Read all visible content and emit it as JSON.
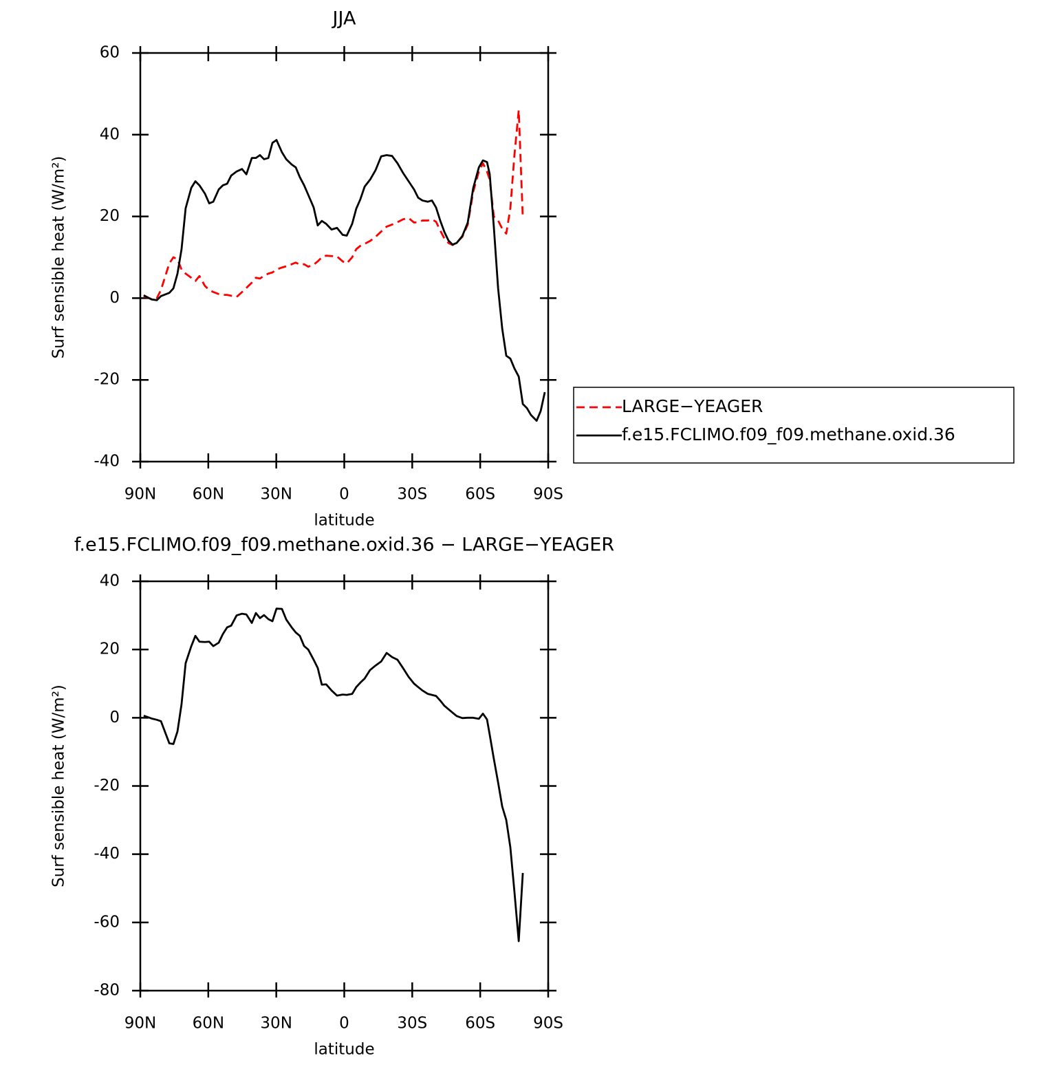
{
  "chart_data": [
    {
      "type": "line",
      "title": "JJA",
      "xlabel": "latitude",
      "ylabel": "Surf sensible heat (W/m²)",
      "xlim": [
        90,
        -90
      ],
      "xticks": [
        {
          "value": 90,
          "label": "90N"
        },
        {
          "value": 60,
          "label": "60N"
        },
        {
          "value": 30,
          "label": "30N"
        },
        0,
        {
          "value": -30,
          "label": "30S"
        },
        {
          "value": -60,
          "label": "60S"
        },
        {
          "value": -90,
          "label": "90S"
        }
      ],
      "ylim": [
        -40,
        60
      ],
      "yticks": [
        60,
        40,
        20,
        0,
        -20,
        -40
      ],
      "legend": "right",
      "x": [
        88.5,
        85.1,
        82.7,
        80.9,
        77.2,
        75.4,
        73.6,
        71.8,
        70,
        67.5,
        65.7,
        63.9,
        61.5,
        59.6,
        57.8,
        55.4,
        53.6,
        51.7,
        49.9,
        47.5,
        45.1,
        43.2,
        40.8,
        39,
        37.2,
        35.4,
        33.5,
        31.7,
        29.9,
        27.5,
        25.6,
        23.2,
        21.4,
        19.6,
        17.7,
        15.9,
        13.5,
        11.7,
        9.9,
        8,
        5.6,
        3.2,
        0.7,
        -1.1,
        -3.5,
        -5.3,
        -7.1,
        -9,
        -11.4,
        -13.8,
        -16.3,
        -18.7,
        -21.1,
        -23.5,
        -26,
        -28.4,
        -30.8,
        -32.6,
        -34.5,
        -36.9,
        -38.7,
        -40.5,
        -42.4,
        -44.2,
        -46,
        -47.8,
        -49.6,
        -52.1,
        -54.5,
        -56.9,
        -59.4,
        -61.2,
        -63,
        -64.2,
        -66,
        -67.9,
        -69.7,
        -71.5,
        -73.3,
        -75.1,
        -77,
        -78.8,
        -80.6,
        -82.4,
        -84.9,
        -86.7,
        -88.5
      ],
      "series": [
        {
          "name": "LARGE−YEAGER",
          "color": "#ff0000",
          "dash": true,
          "values": [
            0.5,
            -0.2,
            0,
            2,
            8.5,
            10,
            9.5,
            7,
            6,
            5,
            4.2,
            5.4,
            3,
            2,
            1.5,
            1,
            0.8,
            0.8,
            0.6,
            0.3,
            1.5,
            2.5,
            3.8,
            5,
            4.8,
            5.5,
            6,
            6.3,
            7,
            7.5,
            7.8,
            8.3,
            8.7,
            8.2,
            8.3,
            7.7,
            8.2,
            9,
            10,
            10.4,
            10.3,
            10.2,
            9,
            8.5,
            10,
            12,
            12.8,
            13.3,
            14,
            15,
            16.3,
            17.5,
            18,
            18.6,
            19.3,
            19.6,
            18.5,
            18.6,
            19,
            19,
            19.3,
            18.7,
            16.5,
            14.6,
            13.5,
            13,
            13.6,
            15,
            18,
            26,
            31,
            33,
            31,
            29,
            20,
            19,
            17,
            15.8,
            22,
            35,
            46,
            19.5,
            null,
            null,
            null,
            null,
            null
          ]
        },
        {
          "name": "f.e15.FCLIMO.f09_f09.methane.oxid.36",
          "color": "#000000",
          "dash": false,
          "values": [
            0.7,
            -0.3,
            -0.5,
            0.5,
            1.3,
            2.4,
            6,
            12,
            22,
            27,
            28.6,
            27.6,
            25.6,
            23.2,
            23.6,
            26.6,
            27.6,
            28,
            30,
            31,
            31.6,
            30.3,
            34.3,
            34.3,
            35,
            34,
            34.3,
            38,
            38.7,
            35.7,
            34,
            32.7,
            32,
            29.6,
            27.6,
            25.3,
            22.2,
            17.8,
            18.9,
            18.2,
            16.8,
            17.2,
            15.5,
            15.3,
            18.2,
            21.9,
            24.2,
            27.3,
            29,
            31.3,
            34.7,
            35,
            34.8,
            33,
            30.6,
            28.6,
            26.6,
            24.6,
            23.9,
            23.6,
            23.9,
            22.2,
            18.9,
            16.2,
            14.1,
            13.1,
            13.5,
            15.2,
            18.5,
            26.9,
            32,
            33.7,
            33.3,
            30.3,
            17.5,
            2.4,
            -7.4,
            -14.1,
            -14.8,
            -17.2,
            -19.2,
            -25.9,
            -26.9,
            -28.6,
            -30,
            -27.6,
            -23
          ]
        }
      ]
    },
    {
      "type": "line",
      "title": "f.e15.FCLIMO.f09_f09.methane.oxid.36 − LARGE−YEAGER",
      "xlabel": "latitude",
      "ylabel": "Surf sensible heat (W/m²)",
      "xlim": [
        90,
        -90
      ],
      "xticks": [
        {
          "value": 90,
          "label": "90N"
        },
        {
          "value": 60,
          "label": "60N"
        },
        {
          "value": 30,
          "label": "30N"
        },
        0,
        {
          "value": -30,
          "label": "30S"
        },
        {
          "value": -60,
          "label": "60S"
        },
        {
          "value": -90,
          "label": "90S"
        }
      ],
      "ylim": [
        -80,
        40
      ],
      "yticks": [
        40,
        20,
        0,
        -20,
        -40,
        -60,
        -80
      ],
      "x": [
        88.5,
        85.1,
        82.7,
        80.9,
        77.2,
        75.4,
        73.6,
        71.8,
        70,
        67.5,
        65.7,
        63.9,
        61.5,
        59.6,
        57.8,
        55.4,
        53.6,
        51.7,
        49.9,
        47.5,
        45.1,
        43.2,
        40.8,
        39,
        37.2,
        35.4,
        33.5,
        31.7,
        29.9,
        27.5,
        25.6,
        23.2,
        21.4,
        19.6,
        17.7,
        15.9,
        13.5,
        11.7,
        9.9,
        8,
        5.6,
        3.2,
        0.7,
        -1.1,
        -3.5,
        -5.3,
        -7.1,
        -9,
        -11.4,
        -13.8,
        -16.3,
        -18.7,
        -21.1,
        -23.5,
        -26,
        -28.4,
        -30.8,
        -32.6,
        -34.5,
        -36.9,
        -38.7,
        -40.5,
        -42.4,
        -44.2,
        -46,
        -47.8,
        -49.6,
        -52.1,
        -54.5,
        -56.9,
        -59.4,
        -61.2,
        -63,
        -64.2,
        -66,
        -67.9,
        -69.7,
        -71.5,
        -73.3,
        -75.1,
        -77,
        -78.8,
        -80.6,
        -82.4,
        -84.9,
        -86.7,
        -88.5
      ],
      "series": [
        {
          "color": "#000000",
          "dash": false,
          "values": [
            0.6,
            -0.2,
            -0.6,
            -1,
            -7.5,
            -7.7,
            -4,
            4,
            16,
            21,
            24,
            22.3,
            22.2,
            22.3,
            21,
            22,
            24.5,
            26.5,
            27,
            30,
            30.5,
            30.3,
            27.8,
            30.7,
            29.2,
            30.1,
            28.9,
            28.3,
            32,
            31.9,
            28.8,
            26.5,
            25,
            24,
            21,
            20,
            17,
            14.6,
            9.7,
            9.8,
            8,
            6.5,
            6.8,
            6.7,
            7,
            9,
            10.3,
            11.5,
            14,
            15.3,
            16.5,
            19,
            17.8,
            17,
            14.5,
            12,
            10,
            9,
            8,
            7,
            6.7,
            6.4,
            5,
            3.5,
            2.5,
            1.5,
            0.5,
            -0.1,
            0,
            0,
            -0.3,
            1.2,
            -0.5,
            -5,
            -12,
            -19,
            -26,
            -30,
            -38,
            -51,
            -65.5,
            -45.5,
            null,
            null,
            null,
            null,
            null
          ]
        }
      ]
    }
  ]
}
